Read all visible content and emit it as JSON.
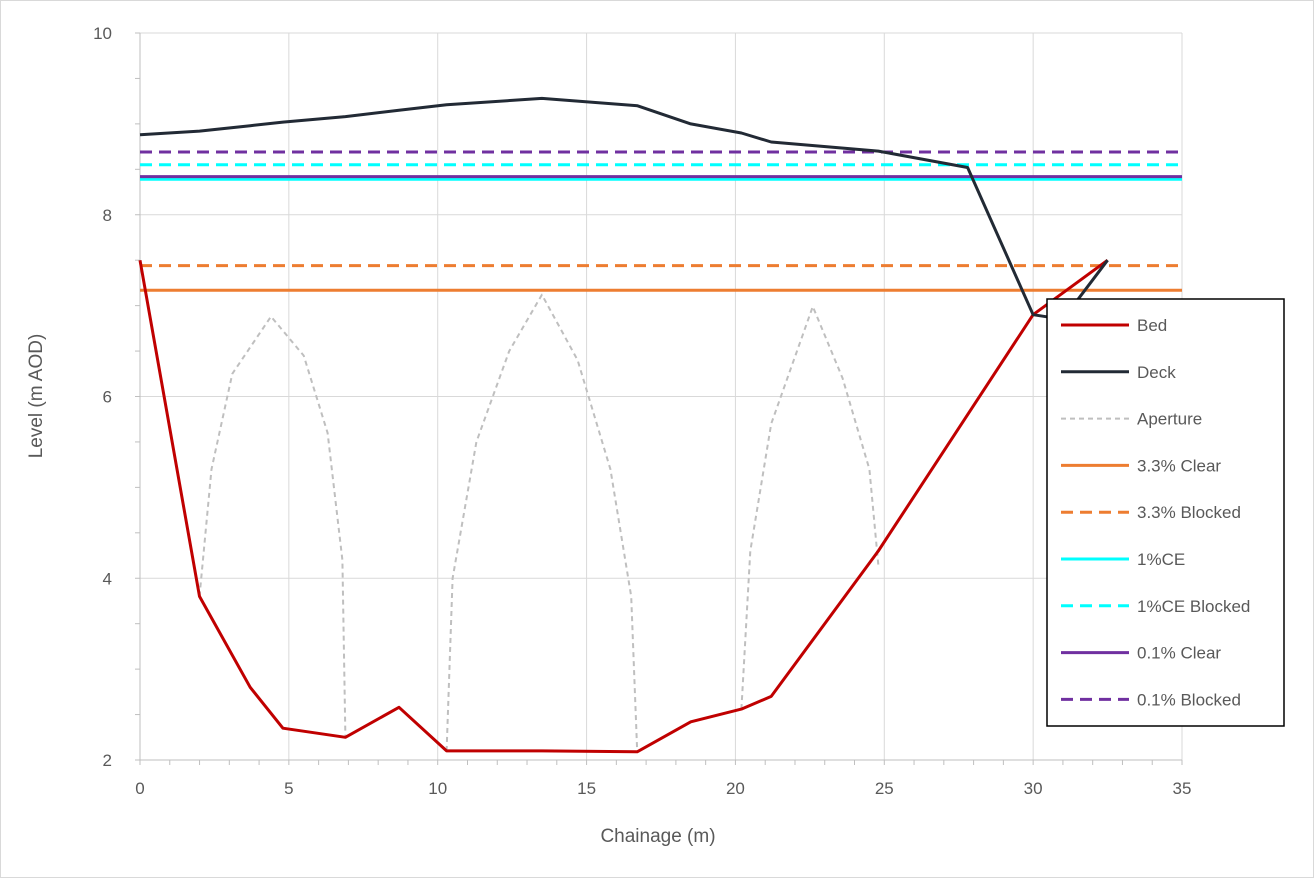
{
  "chart_data": {
    "type": "line",
    "title": "",
    "xlabel": "Chainage (m)",
    "ylabel": "Level (m AOD)",
    "xlim": [
      0,
      35
    ],
    "ylim": [
      2,
      10
    ],
    "xticks": [
      0,
      5,
      10,
      15,
      20,
      25,
      30,
      35
    ],
    "yticks": [
      2,
      4,
      6,
      8,
      10
    ],
    "grid": true,
    "legend_position": "right",
    "series": [
      {
        "name": "Bed",
        "color": "#c00000",
        "dash": "solid",
        "width": 3,
        "points": [
          [
            0,
            7.5
          ],
          [
            2,
            3.8
          ],
          [
            3.7,
            2.8
          ],
          [
            4.8,
            2.35
          ],
          [
            6.9,
            2.25
          ],
          [
            8.7,
            2.58
          ],
          [
            10.3,
            2.1
          ],
          [
            13.5,
            2.1
          ],
          [
            16.7,
            2.09
          ],
          [
            18.5,
            2.42
          ],
          [
            20.2,
            2.56
          ],
          [
            21.2,
            2.7
          ],
          [
            24.8,
            4.3
          ],
          [
            27.8,
            5.8
          ],
          [
            30,
            6.9
          ],
          [
            32.5,
            7.5
          ]
        ]
      },
      {
        "name": "Deck",
        "color": "#222a35",
        "dash": "solid",
        "width": 3,
        "points": [
          [
            0,
            8.88
          ],
          [
            2,
            8.92
          ],
          [
            3.7,
            8.98
          ],
          [
            4.8,
            9.02
          ],
          [
            6.9,
            9.08
          ],
          [
            8.7,
            9.15
          ],
          [
            10.3,
            9.21
          ],
          [
            13.5,
            9.28
          ],
          [
            16.7,
            9.2
          ],
          [
            18.5,
            9.0
          ],
          [
            20.2,
            8.9
          ],
          [
            21.2,
            8.8
          ],
          [
            24.8,
            8.7
          ],
          [
            27.8,
            8.52
          ],
          [
            30,
            6.9
          ],
          [
            31,
            6.85
          ],
          [
            32.5,
            7.5
          ]
        ]
      },
      {
        "name": "Aperture",
        "color": "#bfbfbf",
        "dash": "dashed-fine",
        "width": 2,
        "segments": [
          [
            [
              2,
              3.8
            ],
            [
              2.4,
              5.2
            ],
            [
              3.1,
              6.25
            ],
            [
              4.4,
              6.88
            ],
            [
              5.5,
              6.45
            ],
            [
              6.3,
              5.6
            ],
            [
              6.8,
              4.2
            ],
            [
              6.9,
              2.25
            ]
          ],
          [
            [
              10.3,
              2.1
            ],
            [
              10.5,
              4.0
            ],
            [
              11.3,
              5.5
            ],
            [
              12.4,
              6.5
            ],
            [
              13.5,
              7.12
            ],
            [
              14.7,
              6.4
            ],
            [
              15.8,
              5.2
            ],
            [
              16.5,
              3.8
            ],
            [
              16.7,
              2.09
            ]
          ],
          [
            [
              20.2,
              2.56
            ],
            [
              20.5,
              4.3
            ],
            [
              21.2,
              5.7
            ],
            [
              22.6,
              6.99
            ],
            [
              23.6,
              6.2
            ],
            [
              24.5,
              5.2
            ],
            [
              24.8,
              4.15
            ]
          ]
        ]
      },
      {
        "name": "3.3% Clear",
        "color": "#ed7d31",
        "dash": "solid",
        "width": 3,
        "points": [
          [
            0,
            7.17
          ],
          [
            35,
            7.17
          ]
        ]
      },
      {
        "name": "3.3% Blocked",
        "color": "#ed7d31",
        "dash": "dashed",
        "width": 3,
        "points": [
          [
            0,
            7.44
          ],
          [
            35,
            7.44
          ]
        ]
      },
      {
        "name": "1%CE",
        "color": "#00ffff",
        "dash": "solid",
        "width": 3,
        "points": [
          [
            0,
            8.39
          ],
          [
            35,
            8.39
          ]
        ]
      },
      {
        "name": "1%CE Blocked",
        "color": "#00ffff",
        "dash": "dashed",
        "width": 3,
        "points": [
          [
            0,
            8.55
          ],
          [
            35,
            8.55
          ]
        ]
      },
      {
        "name": "0.1% Clear",
        "color": "#7030a0",
        "dash": "solid",
        "width": 3,
        "points": [
          [
            0,
            8.42
          ],
          [
            35,
            8.42
          ]
        ]
      },
      {
        "name": "0.1% Blocked",
        "color": "#7030a0",
        "dash": "dashed",
        "width": 3,
        "points": [
          [
            0,
            8.69
          ],
          [
            35,
            8.69
          ]
        ]
      }
    ]
  }
}
